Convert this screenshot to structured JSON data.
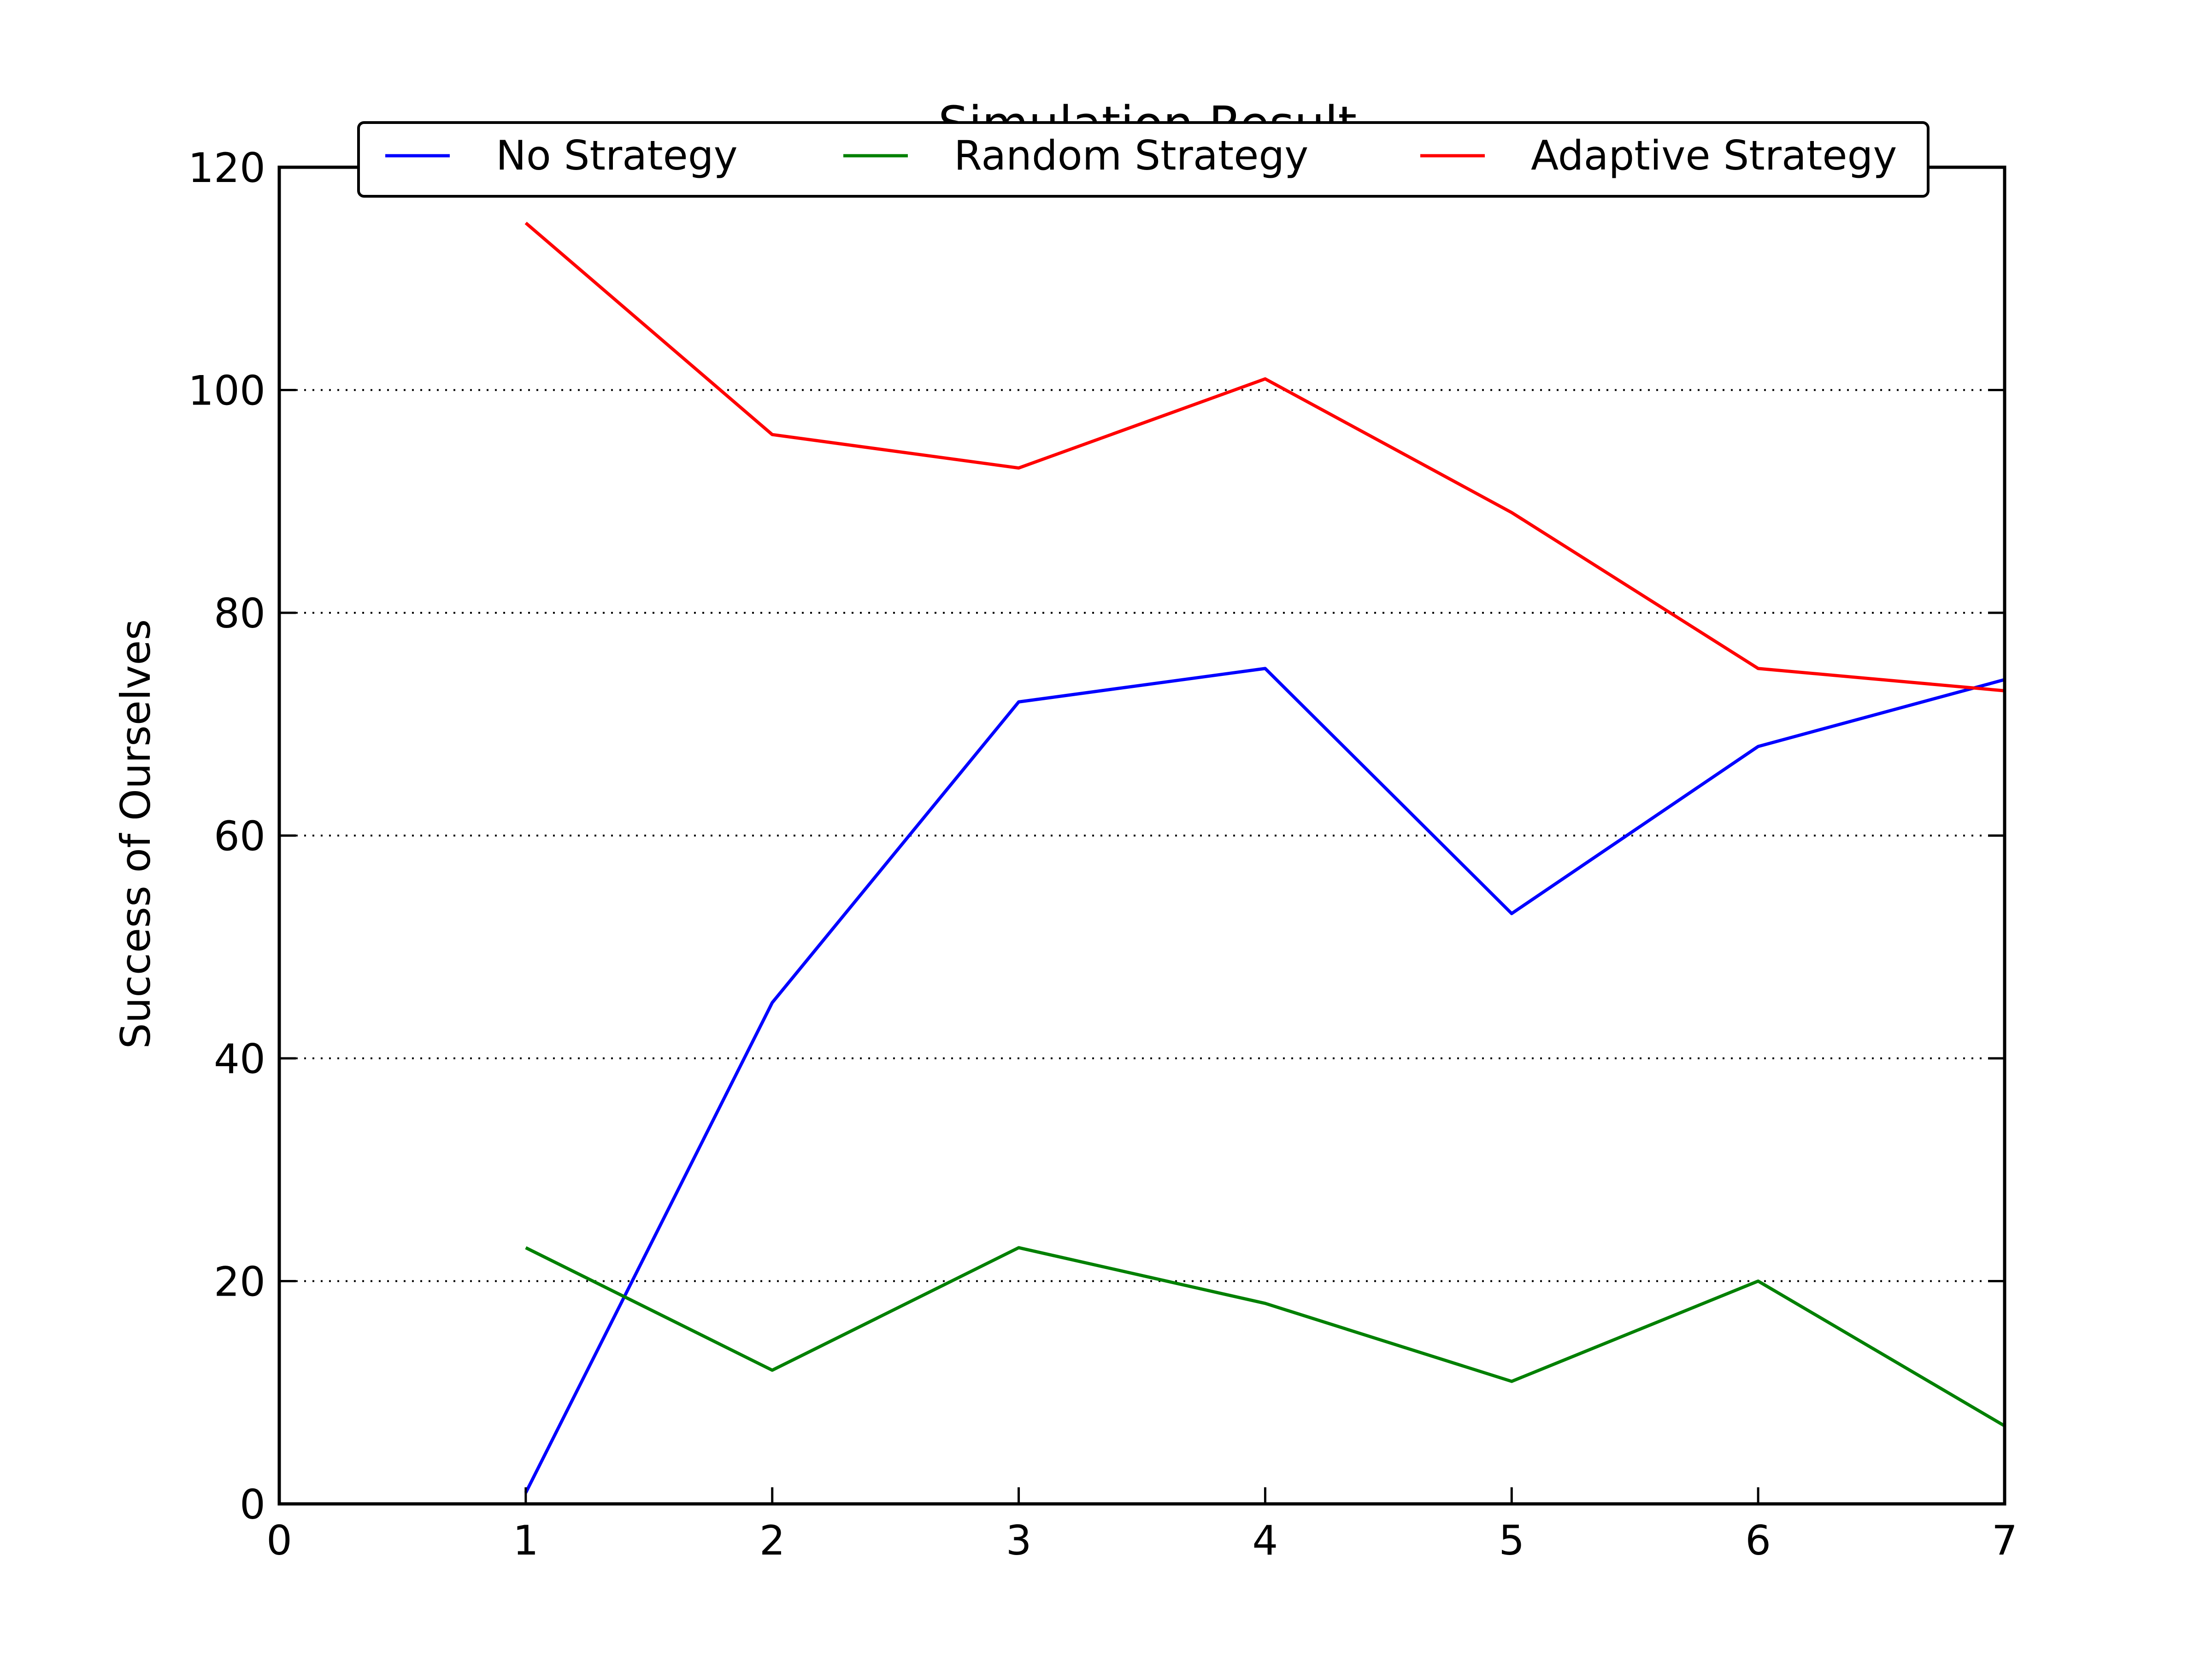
{
  "chart_data": {
    "type": "line",
    "title": "Simulation Result",
    "xlabel": "",
    "ylabel": "Success of Ourselves",
    "xlim": [
      0,
      7
    ],
    "ylim": [
      0,
      120
    ],
    "x_ticks": [
      0,
      1,
      2,
      3,
      4,
      5,
      6,
      7
    ],
    "y_ticks": [
      0,
      20,
      40,
      60,
      80,
      100,
      120
    ],
    "grid": "horizontal dotted",
    "legend_position": "top, overlapping title",
    "x": [
      1,
      2,
      3,
      4,
      5,
      6,
      7
    ],
    "series": [
      {
        "name": "No Strategy",
        "color": "#0000ff",
        "values": [
          1,
          45,
          72,
          75,
          53,
          68,
          74
        ]
      },
      {
        "name": "Random Strategy",
        "color": "#008000",
        "values": [
          23,
          12,
          23,
          18,
          11,
          20,
          7
        ]
      },
      {
        "name": "Adaptive Strategy",
        "color": "#ff0000",
        "values": [
          115,
          96,
          93,
          101,
          89,
          75,
          73
        ]
      }
    ]
  }
}
